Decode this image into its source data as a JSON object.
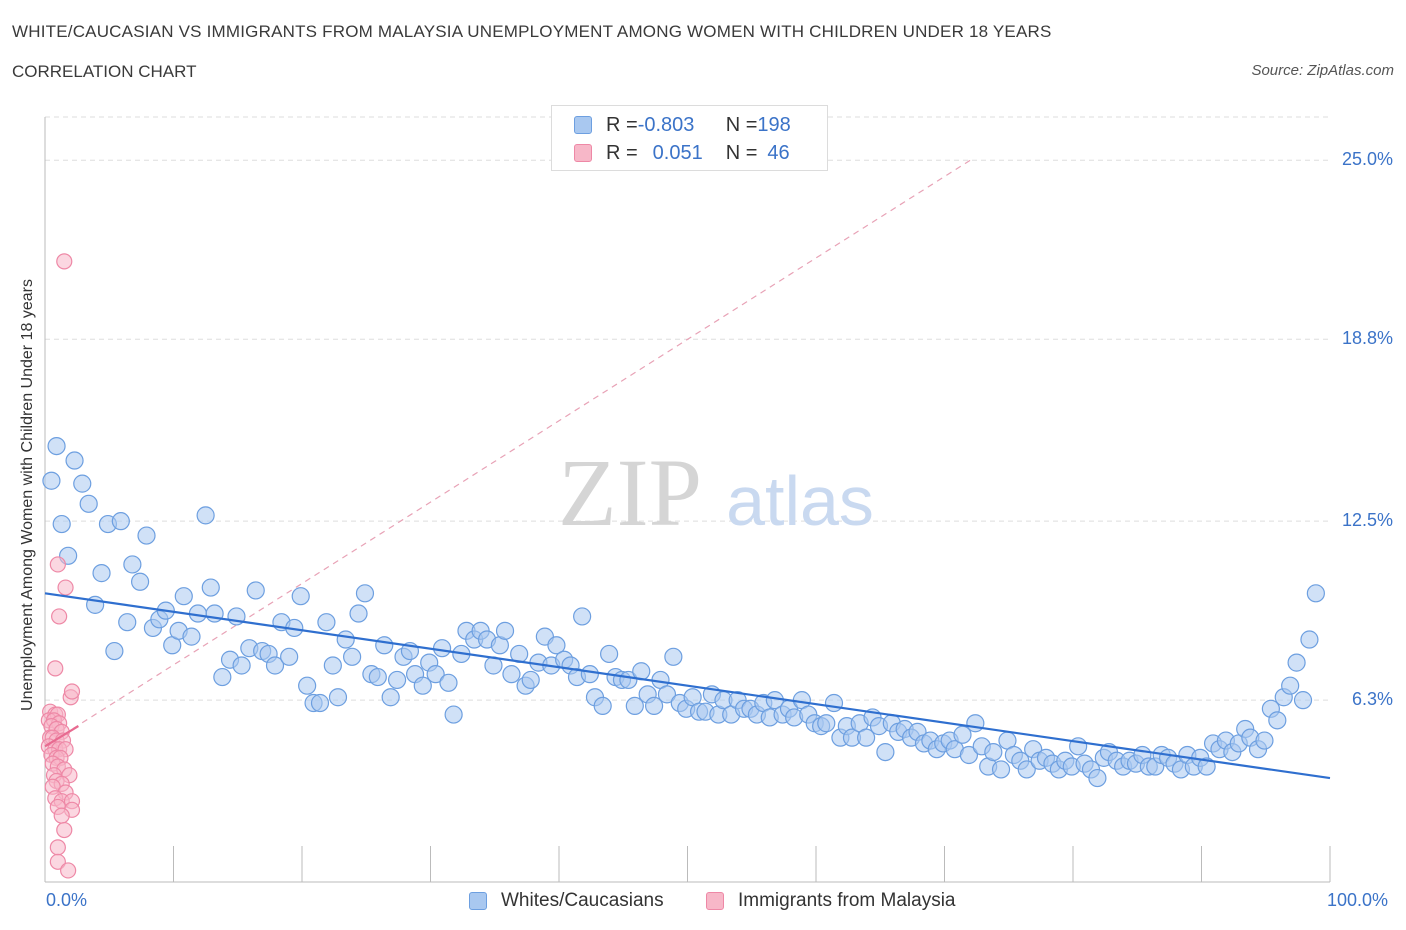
{
  "header": {
    "title": "WHITE/CAUCASIAN VS IMMIGRANTS FROM MALAYSIA UNEMPLOYMENT AMONG WOMEN WITH CHILDREN UNDER 18 YEARS",
    "subtitle": "CORRELATION CHART",
    "source": "Source: ZipAtlas.com"
  },
  "watermark": {
    "zip": "ZIP",
    "atlas": "atlas"
  },
  "legend": {
    "row1": {
      "r_label": "R = ",
      "r_value": "-0.803",
      "n_label": "N = ",
      "n_value": "198"
    },
    "row2": {
      "r_label": "R = ",
      "r_value": "0.051",
      "n_label": "N = ",
      "n_value": "46"
    }
  },
  "colors": {
    "blue_fill": "#a9c8f0",
    "blue_stroke": "#6d9fe0",
    "blue_line": "#2f6fcf",
    "pink_fill": "#f7b7c8",
    "pink_stroke": "#ee88a6",
    "pink_line": "#e86a90",
    "tick_text": "#3b73c8",
    "grid": "#dedede"
  },
  "chart_data": {
    "type": "scatter",
    "title": "WHITE/CAUCASIAN VS IMMIGRANTS FROM MALAYSIA UNEMPLOYMENT AMONG WOMEN WITH CHILDREN UNDER 18 YEARS",
    "xlabel": "",
    "ylabel": "Unemployment Among Women with Children Under 18 years",
    "xlim": [
      0,
      100
    ],
    "ylim": [
      0,
      26.5
    ],
    "x_tick_labels": [
      "0.0%",
      "100.0%"
    ],
    "y_ticks": [
      6.3,
      12.5,
      18.8,
      25.0
    ],
    "y_tick_labels": [
      "6.3%",
      "12.5%",
      "18.8%",
      "25.0%"
    ],
    "grid": true,
    "legend_position": "bottom",
    "series": [
      {
        "name": "Whites/Caucasians",
        "color": "#a9c8f0",
        "trend": {
          "x": [
            0,
            100
          ],
          "y": [
            10.0,
            3.6
          ]
        },
        "points": [
          [
            0.5,
            13.9
          ],
          [
            0.9,
            15.1
          ],
          [
            1.3,
            12.4
          ],
          [
            1.8,
            11.3
          ],
          [
            2.3,
            14.6
          ],
          [
            2.9,
            13.8
          ],
          [
            3.4,
            13.1
          ],
          [
            3.9,
            9.6
          ],
          [
            4.4,
            10.7
          ],
          [
            4.9,
            12.4
          ],
          [
            5.4,
            8.0
          ],
          [
            5.9,
            12.5
          ],
          [
            6.4,
            9.0
          ],
          [
            6.8,
            11.0
          ],
          [
            7.4,
            10.4
          ],
          [
            7.9,
            12.0
          ],
          [
            8.4,
            8.8
          ],
          [
            8.9,
            9.1
          ],
          [
            9.4,
            9.4
          ],
          [
            9.9,
            8.2
          ],
          [
            10.4,
            8.7
          ],
          [
            10.8,
            9.9
          ],
          [
            11.4,
            8.5
          ],
          [
            11.9,
            9.3
          ],
          [
            12.5,
            12.7
          ],
          [
            12.9,
            10.2
          ],
          [
            13.2,
            9.3
          ],
          [
            13.8,
            7.1
          ],
          [
            14.4,
            7.7
          ],
          [
            14.9,
            9.2
          ],
          [
            15.3,
            7.5
          ],
          [
            15.9,
            8.1
          ],
          [
            16.4,
            10.1
          ],
          [
            16.9,
            8.0
          ],
          [
            17.4,
            7.9
          ],
          [
            17.9,
            7.5
          ],
          [
            18.4,
            9.0
          ],
          [
            19.0,
            7.8
          ],
          [
            19.4,
            8.8
          ],
          [
            19.9,
            9.9
          ],
          [
            20.4,
            6.8
          ],
          [
            20.9,
            6.2
          ],
          [
            21.4,
            6.2
          ],
          [
            21.9,
            9.0
          ],
          [
            22.4,
            7.5
          ],
          [
            22.8,
            6.4
          ],
          [
            23.4,
            8.4
          ],
          [
            23.9,
            7.8
          ],
          [
            24.4,
            9.3
          ],
          [
            24.9,
            10.0
          ],
          [
            25.4,
            7.2
          ],
          [
            25.9,
            7.1
          ],
          [
            26.4,
            8.2
          ],
          [
            26.9,
            6.4
          ],
          [
            27.4,
            7.0
          ],
          [
            27.9,
            7.8
          ],
          [
            28.4,
            8.0
          ],
          [
            28.8,
            7.2
          ],
          [
            29.4,
            6.8
          ],
          [
            29.9,
            7.6
          ],
          [
            30.4,
            7.2
          ],
          [
            30.9,
            8.1
          ],
          [
            31.4,
            6.9
          ],
          [
            31.8,
            5.8
          ],
          [
            32.4,
            7.9
          ],
          [
            32.8,
            8.7
          ],
          [
            33.4,
            8.4
          ],
          [
            33.9,
            8.7
          ],
          [
            34.4,
            8.4
          ],
          [
            34.9,
            7.5
          ],
          [
            35.4,
            8.2
          ],
          [
            35.8,
            8.7
          ],
          [
            36.3,
            7.2
          ],
          [
            36.9,
            7.9
          ],
          [
            37.4,
            6.8
          ],
          [
            37.8,
            7.0
          ],
          [
            38.4,
            7.6
          ],
          [
            38.9,
            8.5
          ],
          [
            39.4,
            7.5
          ],
          [
            39.8,
            8.2
          ],
          [
            40.4,
            7.7
          ],
          [
            40.9,
            7.5
          ],
          [
            41.4,
            7.1
          ],
          [
            41.8,
            9.2
          ],
          [
            42.4,
            7.2
          ],
          [
            42.8,
            6.4
          ],
          [
            43.4,
            6.1
          ],
          [
            43.9,
            7.9
          ],
          [
            44.4,
            7.1
          ],
          [
            44.9,
            7.0
          ],
          [
            45.4,
            7.0
          ],
          [
            45.9,
            6.1
          ],
          [
            46.4,
            7.3
          ],
          [
            46.9,
            6.5
          ],
          [
            47.4,
            6.1
          ],
          [
            47.9,
            7.0
          ],
          [
            48.4,
            6.5
          ],
          [
            48.9,
            7.8
          ],
          [
            49.4,
            6.2
          ],
          [
            49.9,
            6.0
          ],
          [
            50.4,
            6.4
          ],
          [
            50.9,
            5.9
          ],
          [
            51.4,
            5.9
          ],
          [
            51.9,
            6.5
          ],
          [
            52.4,
            5.8
          ],
          [
            52.8,
            6.3
          ],
          [
            53.4,
            5.8
          ],
          [
            53.9,
            6.3
          ],
          [
            54.4,
            6.0
          ],
          [
            54.9,
            6.0
          ],
          [
            55.4,
            5.8
          ],
          [
            55.9,
            6.2
          ],
          [
            56.4,
            5.7
          ],
          [
            56.8,
            6.3
          ],
          [
            57.4,
            5.8
          ],
          [
            57.9,
            6.0
          ],
          [
            58.3,
            5.7
          ],
          [
            58.9,
            6.3
          ],
          [
            59.4,
            5.8
          ],
          [
            59.9,
            5.5
          ],
          [
            60.4,
            5.4
          ],
          [
            60.8,
            5.5
          ],
          [
            61.4,
            6.2
          ],
          [
            61.9,
            5.0
          ],
          [
            62.4,
            5.4
          ],
          [
            62.8,
            5.0
          ],
          [
            63.4,
            5.5
          ],
          [
            63.9,
            5.0
          ],
          [
            64.4,
            5.7
          ],
          [
            64.9,
            5.4
          ],
          [
            65.4,
            4.5
          ],
          [
            65.9,
            5.5
          ],
          [
            66.4,
            5.2
          ],
          [
            66.9,
            5.3
          ],
          [
            67.4,
            5.0
          ],
          [
            67.9,
            5.2
          ],
          [
            68.4,
            4.8
          ],
          [
            68.9,
            4.9
          ],
          [
            69.4,
            4.6
          ],
          [
            69.9,
            4.8
          ],
          [
            70.4,
            4.9
          ],
          [
            70.8,
            4.6
          ],
          [
            71.4,
            5.1
          ],
          [
            71.9,
            4.4
          ],
          [
            72.4,
            5.5
          ],
          [
            72.9,
            4.7
          ],
          [
            73.4,
            4.0
          ],
          [
            73.8,
            4.5
          ],
          [
            74.4,
            3.9
          ],
          [
            74.9,
            4.9
          ],
          [
            75.4,
            4.4
          ],
          [
            75.9,
            4.2
          ],
          [
            76.4,
            3.9
          ],
          [
            76.9,
            4.6
          ],
          [
            77.4,
            4.2
          ],
          [
            77.9,
            4.3
          ],
          [
            78.4,
            4.1
          ],
          [
            78.9,
            3.9
          ],
          [
            79.4,
            4.2
          ],
          [
            79.9,
            4.0
          ],
          [
            80.4,
            4.7
          ],
          [
            80.9,
            4.1
          ],
          [
            81.4,
            3.9
          ],
          [
            81.9,
            3.6
          ],
          [
            82.4,
            4.3
          ],
          [
            82.8,
            4.5
          ],
          [
            83.4,
            4.2
          ],
          [
            83.9,
            4.0
          ],
          [
            84.4,
            4.2
          ],
          [
            84.9,
            4.1
          ],
          [
            85.4,
            4.4
          ],
          [
            85.9,
            4.0
          ],
          [
            86.4,
            4.0
          ],
          [
            86.9,
            4.4
          ],
          [
            87.4,
            4.3
          ],
          [
            87.9,
            4.1
          ],
          [
            88.4,
            3.9
          ],
          [
            88.9,
            4.4
          ],
          [
            89.4,
            4.0
          ],
          [
            89.9,
            4.3
          ],
          [
            90.4,
            4.0
          ],
          [
            90.9,
            4.8
          ],
          [
            91.4,
            4.6
          ],
          [
            91.9,
            4.9
          ],
          [
            92.4,
            4.5
          ],
          [
            92.9,
            4.8
          ],
          [
            93.4,
            5.3
          ],
          [
            93.8,
            5.0
          ],
          [
            94.4,
            4.6
          ],
          [
            94.9,
            4.9
          ],
          [
            95.4,
            6.0
          ],
          [
            95.9,
            5.6
          ],
          [
            96.4,
            6.4
          ],
          [
            96.9,
            6.8
          ],
          [
            97.4,
            7.6
          ],
          [
            97.9,
            6.3
          ],
          [
            98.4,
            8.4
          ],
          [
            98.9,
            10.0
          ]
        ]
      },
      {
        "name": "Immigrants from Malaysia",
        "color": "#f7b7c8",
        "trend": {
          "x": [
            0,
            2.6
          ],
          "y": [
            4.7,
            5.4
          ]
        },
        "points": [
          [
            1.5,
            21.5
          ],
          [
            1.0,
            11.0
          ],
          [
            1.6,
            10.2
          ],
          [
            1.1,
            9.2
          ],
          [
            0.8,
            7.4
          ],
          [
            2.0,
            6.4
          ],
          [
            2.1,
            6.6
          ],
          [
            0.4,
            5.9
          ],
          [
            0.8,
            5.8
          ],
          [
            1.0,
            5.8
          ],
          [
            0.3,
            5.6
          ],
          [
            0.7,
            5.6
          ],
          [
            1.1,
            5.5
          ],
          [
            0.5,
            5.4
          ],
          [
            0.9,
            5.3
          ],
          [
            1.3,
            5.2
          ],
          [
            0.4,
            5.0
          ],
          [
            0.6,
            5.0
          ],
          [
            0.9,
            4.9
          ],
          [
            1.4,
            4.9
          ],
          [
            0.3,
            4.7
          ],
          [
            0.8,
            4.6
          ],
          [
            1.1,
            4.6
          ],
          [
            1.6,
            4.6
          ],
          [
            0.5,
            4.4
          ],
          [
            0.9,
            4.3
          ],
          [
            1.2,
            4.3
          ],
          [
            0.6,
            4.1
          ],
          [
            1.0,
            4.0
          ],
          [
            1.5,
            3.9
          ],
          [
            0.7,
            3.7
          ],
          [
            1.9,
            3.7
          ],
          [
            0.9,
            3.5
          ],
          [
            1.3,
            3.4
          ],
          [
            0.6,
            3.3
          ],
          [
            1.6,
            3.1
          ],
          [
            0.8,
            2.9
          ],
          [
            1.3,
            2.8
          ],
          [
            2.1,
            2.8
          ],
          [
            1.0,
            2.6
          ],
          [
            2.1,
            2.5
          ],
          [
            1.3,
            2.3
          ],
          [
            1.5,
            1.8
          ],
          [
            1.0,
            1.2
          ],
          [
            1.0,
            0.7
          ],
          [
            1.8,
            0.4
          ]
        ]
      }
    ],
    "reference_line": {
      "style": "dashed",
      "x": [
        0,
        72
      ],
      "y": [
        4.7,
        25.0
      ]
    }
  }
}
